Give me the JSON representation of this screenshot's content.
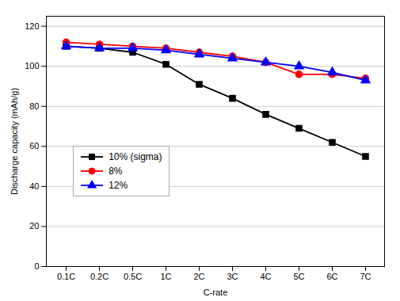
{
  "chart_data": {
    "type": "line",
    "categories": [
      "0.1C",
      "0.2C",
      "0.5C",
      "1C",
      "2C",
      "3C",
      "4C",
      "5C",
      "6C",
      "7C"
    ],
    "series": [
      {
        "name": "10% (sigma)",
        "color": "#000000",
        "marker": "square",
        "values": [
          110,
          109,
          107,
          101,
          91,
          84,
          76,
          69,
          62,
          55
        ]
      },
      {
        "name": "8%",
        "color": "#ff0000",
        "marker": "circle",
        "values": [
          112,
          111,
          110,
          109,
          107,
          105,
          102,
          96,
          96,
          94
        ]
      },
      {
        "name": "12%",
        "color": "#0000ff",
        "marker": "triangle",
        "values": [
          110,
          109,
          109,
          108,
          106,
          104,
          102,
          100,
          97,
          93
        ]
      }
    ],
    "xlabel": "C-rate",
    "ylabel": "Discharge capacity (mAh/g)",
    "ylim": [
      0,
      125
    ],
    "yticks": [
      0,
      20,
      40,
      60,
      80,
      100,
      120
    ],
    "grid": "y",
    "legend": "lower left"
  }
}
